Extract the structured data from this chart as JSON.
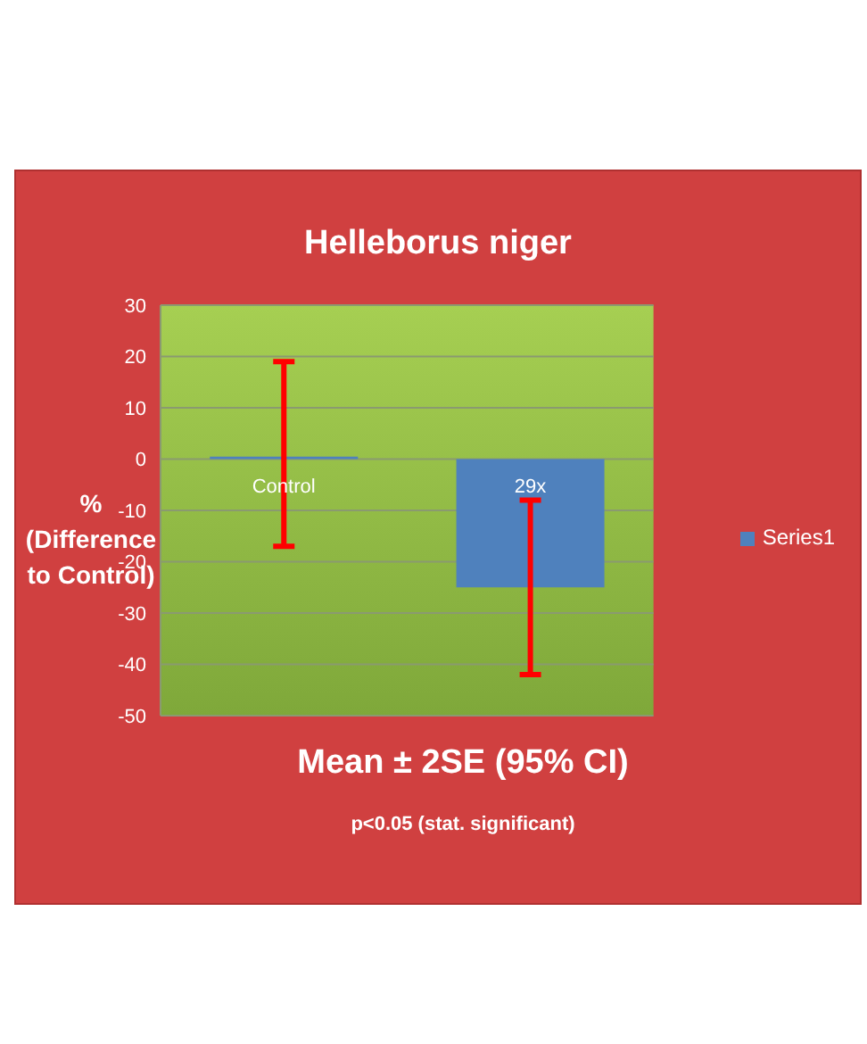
{
  "chart_data": {
    "type": "bar",
    "title": "Helleborus niger",
    "xlabel": "Mean ± 2SE  (95% CI)",
    "ylabel": "% (Difference to Control)",
    "annotations": [
      "p<0.05 (stat. significant)"
    ],
    "categories": [
      "Control",
      "29x"
    ],
    "series": [
      {
        "name": "Series1",
        "color": "#4f81bd",
        "values": [
          0.5,
          -25
        ],
        "errors": [
          [
            -17,
            19
          ],
          [
            -42,
            -8
          ]
        ]
      }
    ],
    "ylim": [
      -50,
      30
    ],
    "yticks": [
      -50,
      -40,
      -30,
      -20,
      -10,
      0,
      10,
      20,
      30
    ],
    "grid": "y",
    "legend": "right"
  }
}
